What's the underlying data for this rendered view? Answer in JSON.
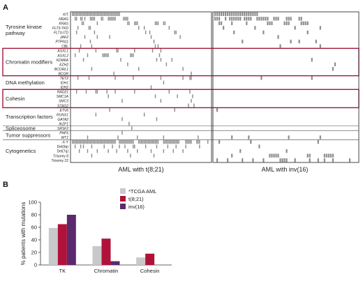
{
  "colors": {
    "tile": "#8c8c8c",
    "frame": "#333333",
    "highlight": "#a3163a",
    "tcga": "#c9c9cb",
    "t821": "#b0123a",
    "inv16": "#5b2a6e"
  },
  "chart_data": [
    {
      "type": "heatmap",
      "panel": "A",
      "groups": [
        "AML with t(8;21)",
        "AML with inv(16)"
      ],
      "categories": [
        {
          "name": "Tyrosine kinase pathway",
          "rows": [
            "KIT",
            "NRAS",
            "KRAS",
            "FLT3-TKD",
            "FLT3-ITD",
            "JAK2",
            "PTPN11",
            "CBL"
          ]
        },
        {
          "name": "Chromatin modifiers",
          "rows": [
            "ASXL1",
            "ASXL2",
            "KDM6A",
            "EZH2",
            "BCORL1",
            "BCOR"
          ],
          "highlighted": true
        },
        {
          "name": "DNA methylation",
          "rows": [
            "TET2",
            "IDH1",
            "IDH2"
          ]
        },
        {
          "name": "Cohesin",
          "rows": [
            "RAD21",
            "SMC1A",
            "SMC3",
            "STAG2"
          ],
          "highlighted": true
        },
        {
          "name": "Transcription factors",
          "rows": [
            "ETV6",
            "RUNX1",
            "GATA2",
            "IKZF1"
          ]
        },
        {
          "name": "Spliceosome",
          "rows": [
            "SRSF2"
          ]
        },
        {
          "name": "Tumor suppressors",
          "rows": [
            "PHF6",
            "WT1"
          ]
        },
        {
          "name": "Cytogenetics",
          "rows": [
            "-X-Y",
            "Del(9q)",
            "Del(7q)",
            "Trisomy 8",
            "Trisomy 22"
          ]
        }
      ],
      "rows": [
        "KIT",
        "NRAS",
        "KRAS",
        "FLT3-TKD",
        "FLT3-ITD",
        "JAK2",
        "PTPN11",
        "CBL",
        "ASXL1",
        "ASXL2",
        "KDM6A",
        "EZH2",
        "BCORL1",
        "BCOR",
        "TET2",
        "IDH1",
        "IDH2",
        "RAD21",
        "SMC1A",
        "SMC3",
        "STAG2",
        "ETV6",
        "RUNX1",
        "GATA2",
        "IKZF1",
        "SRSF2",
        "PHF6",
        "WT1",
        "-X-Y",
        "Del(9q)",
        "Del(7q)",
        "Trisomy 8",
        "Trisomy 22"
      ],
      "samples_per_group": [
        100,
        68
      ],
      "mutations": {
        "t(8;21)": {
          "KIT": [
            [
              0,
              34
            ]
          ],
          "NRAS": [
            [
              2,
              3
            ],
            [
              6,
              7
            ],
            [
              9,
              9
            ],
            [
              13,
              16
            ],
            [
              21,
              22
            ],
            [
              26,
              31
            ],
            [
              37,
              40
            ]
          ],
          "KRAS": [
            [
              7,
              8
            ],
            [
              18,
              18
            ],
            [
              40,
              41
            ],
            [
              45,
              47
            ],
            [
              60,
              62
            ],
            [
              66,
              67
            ]
          ],
          "FLT3-TKD": [
            [
              4,
              4
            ],
            [
              12,
              13
            ],
            [
              48,
              48
            ],
            [
              52,
              52
            ],
            [
              70,
              70
            ]
          ],
          "FLT3-ITD": [
            [
              3,
              3
            ],
            [
              16,
              16
            ],
            [
              53,
              53
            ],
            [
              56,
              56
            ],
            [
              74,
              75
            ]
          ],
          "JAK2": [
            [
              9,
              9
            ],
            [
              18,
              18
            ],
            [
              27,
              27
            ],
            [
              57,
              57
            ],
            [
              78,
              78
            ]
          ],
          "PTPN11": [
            [
              13,
              13
            ],
            [
              59,
              59
            ]
          ],
          "CBL": [
            [
              6,
              6
            ],
            [
              14,
              14
            ],
            [
              60,
              60
            ],
            [
              62,
              62
            ]
          ],
          "ASXL1": [
            [
              5,
              5
            ],
            [
              17,
              17
            ],
            [
              32,
              33
            ],
            [
              45,
              45
            ],
            [
              58,
              58
            ],
            [
              64,
              64
            ]
          ],
          "ASXL2": [
            [
              2,
              2
            ],
            [
              11,
              11
            ],
            [
              22,
              26
            ],
            [
              42,
              44
            ],
            [
              63,
              63
            ]
          ],
          "KDM6A": [
            [
              8,
              8
            ],
            [
              35,
              35
            ],
            [
              61,
              61
            ],
            [
              64,
              64
            ],
            [
              72,
              72
            ]
          ],
          "EZH2": [
            [
              40,
              40
            ],
            [
              68,
              68
            ]
          ],
          "BCORL1": [
            [
              14,
              14
            ],
            [
              48,
              48
            ],
            [
              80,
              80
            ]
          ],
          "BCOR": [
            [
              30,
              30
            ],
            [
              86,
              86
            ]
          ],
          "TET2": [
            [
              4,
              4
            ],
            [
              12,
              12
            ],
            [
              31,
              31
            ],
            [
              44,
              44
            ],
            [
              64,
              64
            ],
            [
              80,
              80
            ],
            [
              85,
              86
            ]
          ],
          "IDH1": [
            [
              66,
              66
            ]
          ],
          "IDH2": [
            [
              57,
              57
            ]
          ],
          "RAD21": [
            [
              3,
              3
            ],
            [
              10,
              10
            ],
            [
              17,
              18
            ],
            [
              25,
              25
            ],
            [
              31,
              31
            ],
            [
              45,
              45
            ],
            [
              70,
              70
            ],
            [
              85,
              85
            ]
          ],
          "SMC1A": [
            [
              26,
              26
            ],
            [
              60,
              60
            ],
            [
              76,
              76
            ],
            [
              87,
              87
            ]
          ],
          "SMC3": [
            [
              36,
              36
            ],
            [
              64,
              64
            ],
            [
              86,
              86
            ]
          ],
          "STAG2": [
            [
              84,
              84
            ],
            [
              88,
              88
            ]
          ],
          "ETV6": [
            [
              27,
              27
            ],
            [
              74,
              74
            ]
          ],
          "RUNX1": [
            [
              17,
              17
            ],
            [
              52,
              52
            ]
          ],
          "GATA2": [
            [
              36,
              36
            ],
            [
              61,
              61
            ]
          ],
          "IKZF1": [
            [
              41,
              41
            ]
          ],
          "SRSF2": [
            [
              43,
              43
            ]
          ],
          "PHF6": [
            [
              36,
              36
            ]
          ],
          "WT1": [
            [
              11,
              11
            ],
            [
              33,
              33
            ],
            [
              47,
              47
            ],
            [
              66,
              66
            ],
            [
              91,
              91
            ]
          ],
          "-X-Y": [
            [
              0,
              31
            ],
            [
              34,
              44
            ],
            [
              48,
              62
            ],
            [
              66,
              77
            ],
            [
              82,
              86
            ],
            [
              90,
              92
            ],
            [
              98,
              98
            ]
          ],
          "Del(9q)": [
            [
              2,
              2
            ],
            [
              6,
              6
            ],
            [
              8,
              8
            ],
            [
              14,
              14
            ],
            [
              23,
              23
            ],
            [
              29,
              29
            ],
            [
              34,
              34
            ],
            [
              38,
              38
            ],
            [
              44,
              45
            ],
            [
              53,
              53
            ],
            [
              61,
              61
            ],
            [
              69,
              69
            ],
            [
              75,
              75
            ],
            [
              82,
              82
            ],
            [
              92,
              92
            ]
          ],
          "Del(7q)": [
            [
              5,
              5
            ],
            [
              11,
              11
            ],
            [
              18,
              18
            ],
            [
              26,
              26
            ],
            [
              32,
              32
            ],
            [
              40,
              40
            ],
            [
              47,
              47
            ],
            [
              57,
              57
            ],
            [
              66,
              66
            ],
            [
              73,
              73
            ],
            [
              80,
              80
            ]
          ],
          "Trisomy 8": [
            [
              14,
              14
            ],
            [
              42,
              42
            ],
            [
              59,
              59
            ]
          ],
          "Trisomy 22": []
        },
        "inv(16)": {
          "KIT": [
            [
              0,
              20
            ]
          ],
          "NRAS": [
            [
              0,
              2
            ],
            [
              5,
              5
            ],
            [
              7,
              12
            ],
            [
              14,
              17
            ],
            [
              20,
              25
            ],
            [
              28,
              30
            ],
            [
              34,
              36
            ],
            [
              40,
              41
            ]
          ],
          "KRAS": [
            [
              2,
              3
            ],
            [
              8,
              8
            ],
            [
              15,
              15
            ],
            [
              25,
              27
            ],
            [
              33,
              35
            ],
            [
              41,
              44
            ]
          ],
          "FLT3-TKD": [
            [
              4,
              4
            ],
            [
              19,
              19
            ],
            [
              38,
              38
            ],
            [
              50,
              50
            ]
          ],
          "FLT3-ITD": [
            [
              9,
              9
            ],
            [
              23,
              23
            ],
            [
              44,
              44
            ]
          ],
          "JAK2": [
            [
              30,
              30
            ]
          ],
          "PTPN11": [
            [
              13,
              13
            ],
            [
              36,
              36
            ],
            [
              40,
              40
            ],
            [
              48,
              48
            ]
          ],
          "CBL": [
            [
              31,
              31
            ],
            [
              50,
              50
            ]
          ],
          "ASXL1": [],
          "ASXL2": [],
          "KDM6A": [
            [
              46,
              46
            ]
          ],
          "EZH2": [
            [
              57,
              57
            ]
          ],
          "BCORL1": [
            [
              56,
              56
            ]
          ],
          "BCOR": [],
          "TET2": [
            [
              22,
              22
            ],
            [
              46,
              46
            ]
          ],
          "IDH1": [],
          "IDH2": [],
          "RAD21": [],
          "SMC1A": [],
          "SMC3": [],
          "STAG2": [],
          "ETV6": [
            [
              1,
              1
            ]
          ],
          "RUNX1": [],
          "GATA2": [],
          "IKZF1": [],
          "SRSF2": [],
          "PHF6": [],
          "WT1": [
            [
              8,
              8
            ],
            [
              16,
              16
            ],
            [
              35,
              35
            ],
            [
              50,
              50
            ]
          ],
          "-X-Y": [
            [
              2,
              2
            ],
            [
              17,
              17
            ],
            [
              49,
              49
            ]
          ],
          "Del(9q)": [
            [
              21,
              21
            ]
          ],
          "Del(7q)": [
            [
              12,
              12
            ],
            [
              34,
              34
            ]
          ],
          "Trisomy 8": [
            [
              8,
              8
            ],
            [
              26,
              30
            ],
            [
              44,
              45
            ],
            [
              52,
              56
            ]
          ],
          "Trisomy 22": [
            [
              1,
              1
            ],
            [
              6,
              6
            ],
            [
              13,
              13
            ],
            [
              18,
              18
            ],
            [
              23,
              23
            ],
            [
              31,
              34
            ],
            [
              38,
              38
            ],
            [
              45,
              45
            ],
            [
              49,
              49
            ],
            [
              52,
              52
            ],
            [
              56,
              56
            ],
            [
              64,
              64
            ]
          ]
        }
      }
    },
    {
      "type": "bar",
      "panel": "B",
      "categories": [
        "TK",
        "Chromatin",
        "Cohesin"
      ],
      "series": [
        {
          "name": "*TCGA AML",
          "values": [
            59,
            30,
            12
          ]
        },
        {
          "name": "t(8;21)",
          "values": [
            65,
            42,
            18
          ]
        },
        {
          "name": "inv(16)",
          "values": [
            80,
            6,
            0
          ]
        }
      ],
      "xlabel": "",
      "ylabel": "% patients with mutations",
      "ylim": [
        0,
        100
      ],
      "yticks": [
        0,
        20,
        40,
        60,
        80,
        100
      ],
      "legend": "top-center",
      "grid": false
    }
  ]
}
